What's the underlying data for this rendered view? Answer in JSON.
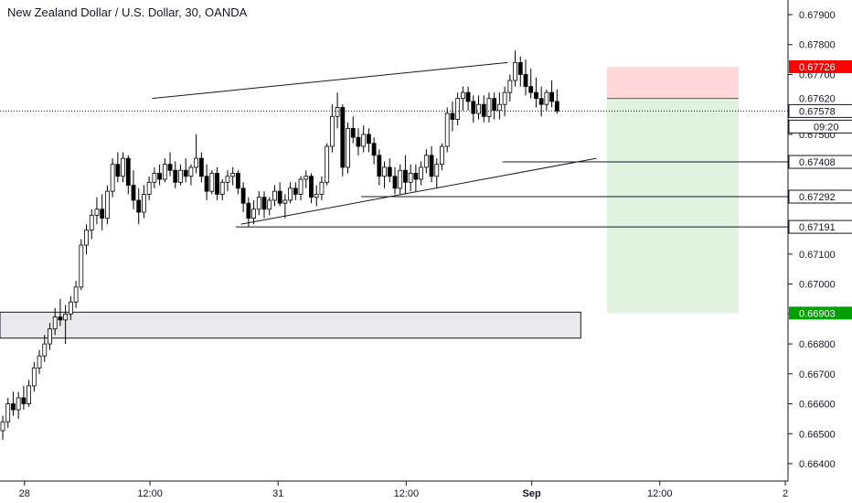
{
  "chart_data": {
    "type": "candlestick",
    "title": "New Zealand Dollar / U.S. Dollar, 30, OANDA",
    "colors": {
      "up": "#ffffff",
      "down": "#000000",
      "wick": "#000000",
      "grid": "#e6e6e6",
      "stop_zone": "#ffd9d9",
      "target_zone": "#dff3df",
      "stop_tag": "#ff0000",
      "target_tag": "#00a000"
    },
    "y_axis": {
      "ticks": [
        "0.67900",
        "0.67800",
        "0.67700",
        "0.67600",
        "0.67500",
        "0.67400",
        "0.67300",
        "0.67200",
        "0.67100",
        "0.67000",
        "0.66900",
        "0.66800",
        "0.66700",
        "0.66600",
        "0.66500",
        "0.66400"
      ],
      "ylim": [
        0.6635,
        0.6795
      ]
    },
    "x_axis": {
      "ticks": [
        "28",
        "12:00",
        "31",
        "12:00",
        "Sep",
        "12:00",
        "2"
      ]
    },
    "candles": [
      [
        0.6651,
        0.6656,
        0.6648,
        0.6654
      ],
      [
        0.6654,
        0.6662,
        0.6652,
        0.666
      ],
      [
        0.666,
        0.6664,
        0.6656,
        0.6658
      ],
      [
        0.6658,
        0.6664,
        0.6655,
        0.6662
      ],
      [
        0.6662,
        0.6666,
        0.6658,
        0.666
      ],
      [
        0.666,
        0.6668,
        0.6659,
        0.6666
      ],
      [
        0.6666,
        0.6674,
        0.6664,
        0.6672
      ],
      [
        0.6672,
        0.6678,
        0.667,
        0.6676
      ],
      [
        0.6676,
        0.6683,
        0.6674,
        0.668
      ],
      [
        0.668,
        0.6687,
        0.6678,
        0.6685
      ],
      [
        0.6685,
        0.6692,
        0.6683,
        0.6689
      ],
      [
        0.6689,
        0.6695,
        0.6686,
        0.6688
      ],
      [
        0.6688,
        0.6693,
        0.668,
        0.669
      ],
      [
        0.669,
        0.6696,
        0.6688,
        0.6694
      ],
      [
        0.6694,
        0.6701,
        0.6692,
        0.6699
      ],
      [
        0.6699,
        0.6715,
        0.6698,
        0.6713
      ],
      [
        0.6713,
        0.672,
        0.671,
        0.6718
      ],
      [
        0.6718,
        0.6725,
        0.6715,
        0.6723
      ],
      [
        0.6723,
        0.6729,
        0.672,
        0.6725
      ],
      [
        0.6725,
        0.673,
        0.6718,
        0.6722
      ],
      [
        0.6722,
        0.6733,
        0.672,
        0.6731
      ],
      [
        0.6731,
        0.6742,
        0.6729,
        0.674
      ],
      [
        0.674,
        0.6744,
        0.6734,
        0.6736
      ],
      [
        0.6736,
        0.6744,
        0.6734,
        0.6742
      ],
      [
        0.6742,
        0.6743,
        0.673,
        0.6733
      ],
      [
        0.6733,
        0.6738,
        0.6725,
        0.6728
      ],
      [
        0.6728,
        0.6732,
        0.672,
        0.6724
      ],
      [
        0.6724,
        0.6733,
        0.6722,
        0.673
      ],
      [
        0.673,
        0.6736,
        0.6728,
        0.6734
      ],
      [
        0.6734,
        0.6739,
        0.6732,
        0.6737
      ],
      [
        0.6737,
        0.674,
        0.6733,
        0.6735
      ],
      [
        0.6735,
        0.6742,
        0.6734,
        0.674
      ],
      [
        0.674,
        0.6744,
        0.6736,
        0.6738
      ],
      [
        0.6738,
        0.6741,
        0.6732,
        0.6734
      ],
      [
        0.6734,
        0.674,
        0.6733,
        0.6738
      ],
      [
        0.6738,
        0.6742,
        0.6734,
        0.6736
      ],
      [
        0.6736,
        0.674,
        0.6733,
        0.6739
      ],
      [
        0.6739,
        0.675,
        0.6737,
        0.6742
      ],
      [
        0.6742,
        0.6744,
        0.6734,
        0.6736
      ],
      [
        0.6736,
        0.674,
        0.6728,
        0.6731
      ],
      [
        0.6731,
        0.6738,
        0.673,
        0.6737
      ],
      [
        0.6737,
        0.6739,
        0.6728,
        0.673
      ],
      [
        0.673,
        0.6735,
        0.6728,
        0.6734
      ],
      [
        0.6734,
        0.6738,
        0.6731,
        0.6736
      ],
      [
        0.6736,
        0.6739,
        0.6733,
        0.6737
      ],
      [
        0.6737,
        0.6738,
        0.673,
        0.6732
      ],
      [
        0.6732,
        0.6734,
        0.6724,
        0.6727
      ],
      [
        0.6727,
        0.6729,
        0.6719,
        0.6722
      ],
      [
        0.6722,
        0.6728,
        0.672,
        0.6725
      ],
      [
        0.6725,
        0.6731,
        0.6723,
        0.6729
      ],
      [
        0.6729,
        0.6731,
        0.6722,
        0.6725
      ],
      [
        0.6725,
        0.6729,
        0.6723,
        0.6728
      ],
      [
        0.6728,
        0.6733,
        0.6726,
        0.6731
      ],
      [
        0.6731,
        0.6734,
        0.6726,
        0.6727
      ],
      [
        0.6727,
        0.673,
        0.6722,
        0.6728
      ],
      [
        0.6728,
        0.6734,
        0.6727,
        0.6732
      ],
      [
        0.6732,
        0.6734,
        0.6728,
        0.673
      ],
      [
        0.673,
        0.6736,
        0.6728,
        0.6735
      ],
      [
        0.6735,
        0.6738,
        0.6732,
        0.6736
      ],
      [
        0.6736,
        0.6737,
        0.6727,
        0.6729
      ],
      [
        0.6729,
        0.6733,
        0.6726,
        0.673
      ],
      [
        0.673,
        0.6736,
        0.6728,
        0.6734
      ],
      [
        0.6734,
        0.6747,
        0.6733,
        0.6746
      ],
      [
        0.6746,
        0.676,
        0.6744,
        0.6756
      ],
      [
        0.6756,
        0.6764,
        0.6752,
        0.6759
      ],
      [
        0.6759,
        0.676,
        0.6736,
        0.6739
      ],
      [
        0.6739,
        0.6754,
        0.6737,
        0.6752
      ],
      [
        0.6752,
        0.6756,
        0.6747,
        0.6749
      ],
      [
        0.6749,
        0.6752,
        0.6743,
        0.6746
      ],
      [
        0.6746,
        0.6753,
        0.6744,
        0.675
      ],
      [
        0.675,
        0.6752,
        0.6744,
        0.6747
      ],
      [
        0.6747,
        0.6749,
        0.674,
        0.6743
      ],
      [
        0.6743,
        0.6745,
        0.6733,
        0.6736
      ],
      [
        0.6736,
        0.6741,
        0.6732,
        0.6739
      ],
      [
        0.6739,
        0.6742,
        0.6734,
        0.6736
      ],
      [
        0.6736,
        0.6739,
        0.673,
        0.6732
      ],
      [
        0.6732,
        0.674,
        0.673,
        0.6738
      ],
      [
        0.6738,
        0.6743,
        0.673,
        0.6734
      ],
      [
        0.6734,
        0.674,
        0.6731,
        0.6737
      ],
      [
        0.6737,
        0.674,
        0.6731,
        0.6735
      ],
      [
        0.6735,
        0.6741,
        0.6733,
        0.6739
      ],
      [
        0.6739,
        0.6745,
        0.6737,
        0.6743
      ],
      [
        0.6743,
        0.6746,
        0.6734,
        0.6736
      ],
      [
        0.6736,
        0.6742,
        0.6732,
        0.674
      ],
      [
        0.674,
        0.6747,
        0.6738,
        0.6746
      ],
      [
        0.6746,
        0.6759,
        0.6744,
        0.6757
      ],
      [
        0.6757,
        0.6761,
        0.6751,
        0.6755
      ],
      [
        0.6755,
        0.6764,
        0.6753,
        0.6762
      ],
      [
        0.6762,
        0.6766,
        0.6758,
        0.6764
      ],
      [
        0.6764,
        0.6766,
        0.6758,
        0.6761
      ],
      [
        0.6761,
        0.6763,
        0.6754,
        0.6757
      ],
      [
        0.6757,
        0.6763,
        0.6755,
        0.676
      ],
      [
        0.676,
        0.6763,
        0.6754,
        0.6756
      ],
      [
        0.6756,
        0.6764,
        0.6754,
        0.6762
      ],
      [
        0.6762,
        0.6764,
        0.6755,
        0.6758
      ],
      [
        0.6758,
        0.6764,
        0.6755,
        0.676
      ],
      [
        0.676,
        0.6766,
        0.6756,
        0.6764
      ],
      [
        0.6764,
        0.677,
        0.6761,
        0.6768
      ],
      [
        0.6768,
        0.6778,
        0.6766,
        0.6774
      ],
      [
        0.6774,
        0.6776,
        0.6766,
        0.677
      ],
      [
        0.677,
        0.6775,
        0.6763,
        0.6766
      ],
      [
        0.6766,
        0.6772,
        0.6762,
        0.6764
      ],
      [
        0.6764,
        0.6769,
        0.6759,
        0.6762
      ],
      [
        0.6762,
        0.6766,
        0.6756,
        0.676
      ],
      [
        0.676,
        0.6765,
        0.6758,
        0.6764
      ],
      [
        0.6764,
        0.6768,
        0.6759,
        0.6761
      ],
      [
        0.6761,
        0.6765,
        0.6757,
        0.67578
      ]
    ],
    "trendlines": [
      {
        "name": "channel-upper",
        "from": [
          29,
          0.6762
        ],
        "to": [
          97,
          0.6774
        ]
      },
      {
        "name": "channel-lower",
        "from": [
          46,
          0.672
        ],
        "to": [
          114,
          0.6742
        ]
      }
    ],
    "levels": [
      {
        "name": "level-67408",
        "value": 0.67408,
        "from": 96,
        "label": "0.67408"
      },
      {
        "name": "level-67292",
        "value": 0.67292,
        "from": 69,
        "label": "0.67292"
      },
      {
        "name": "level-67191",
        "value": 0.67191,
        "from": 45,
        "label": "0.67191"
      }
    ],
    "zone": {
      "name": "support-zone",
      "top": 0.669,
      "bottom": 0.6685,
      "to": 97
    },
    "position": {
      "entry": 0.6762,
      "stop": 0.67726,
      "target": 0.66903,
      "from": 96,
      "to": 116,
      "stop_label": "0.67726",
      "entry_label": "0.67620",
      "target_label": "0.66903"
    },
    "last_price": {
      "value": 0.67578,
      "label": "0.67578",
      "countdown": "09:20"
    }
  }
}
